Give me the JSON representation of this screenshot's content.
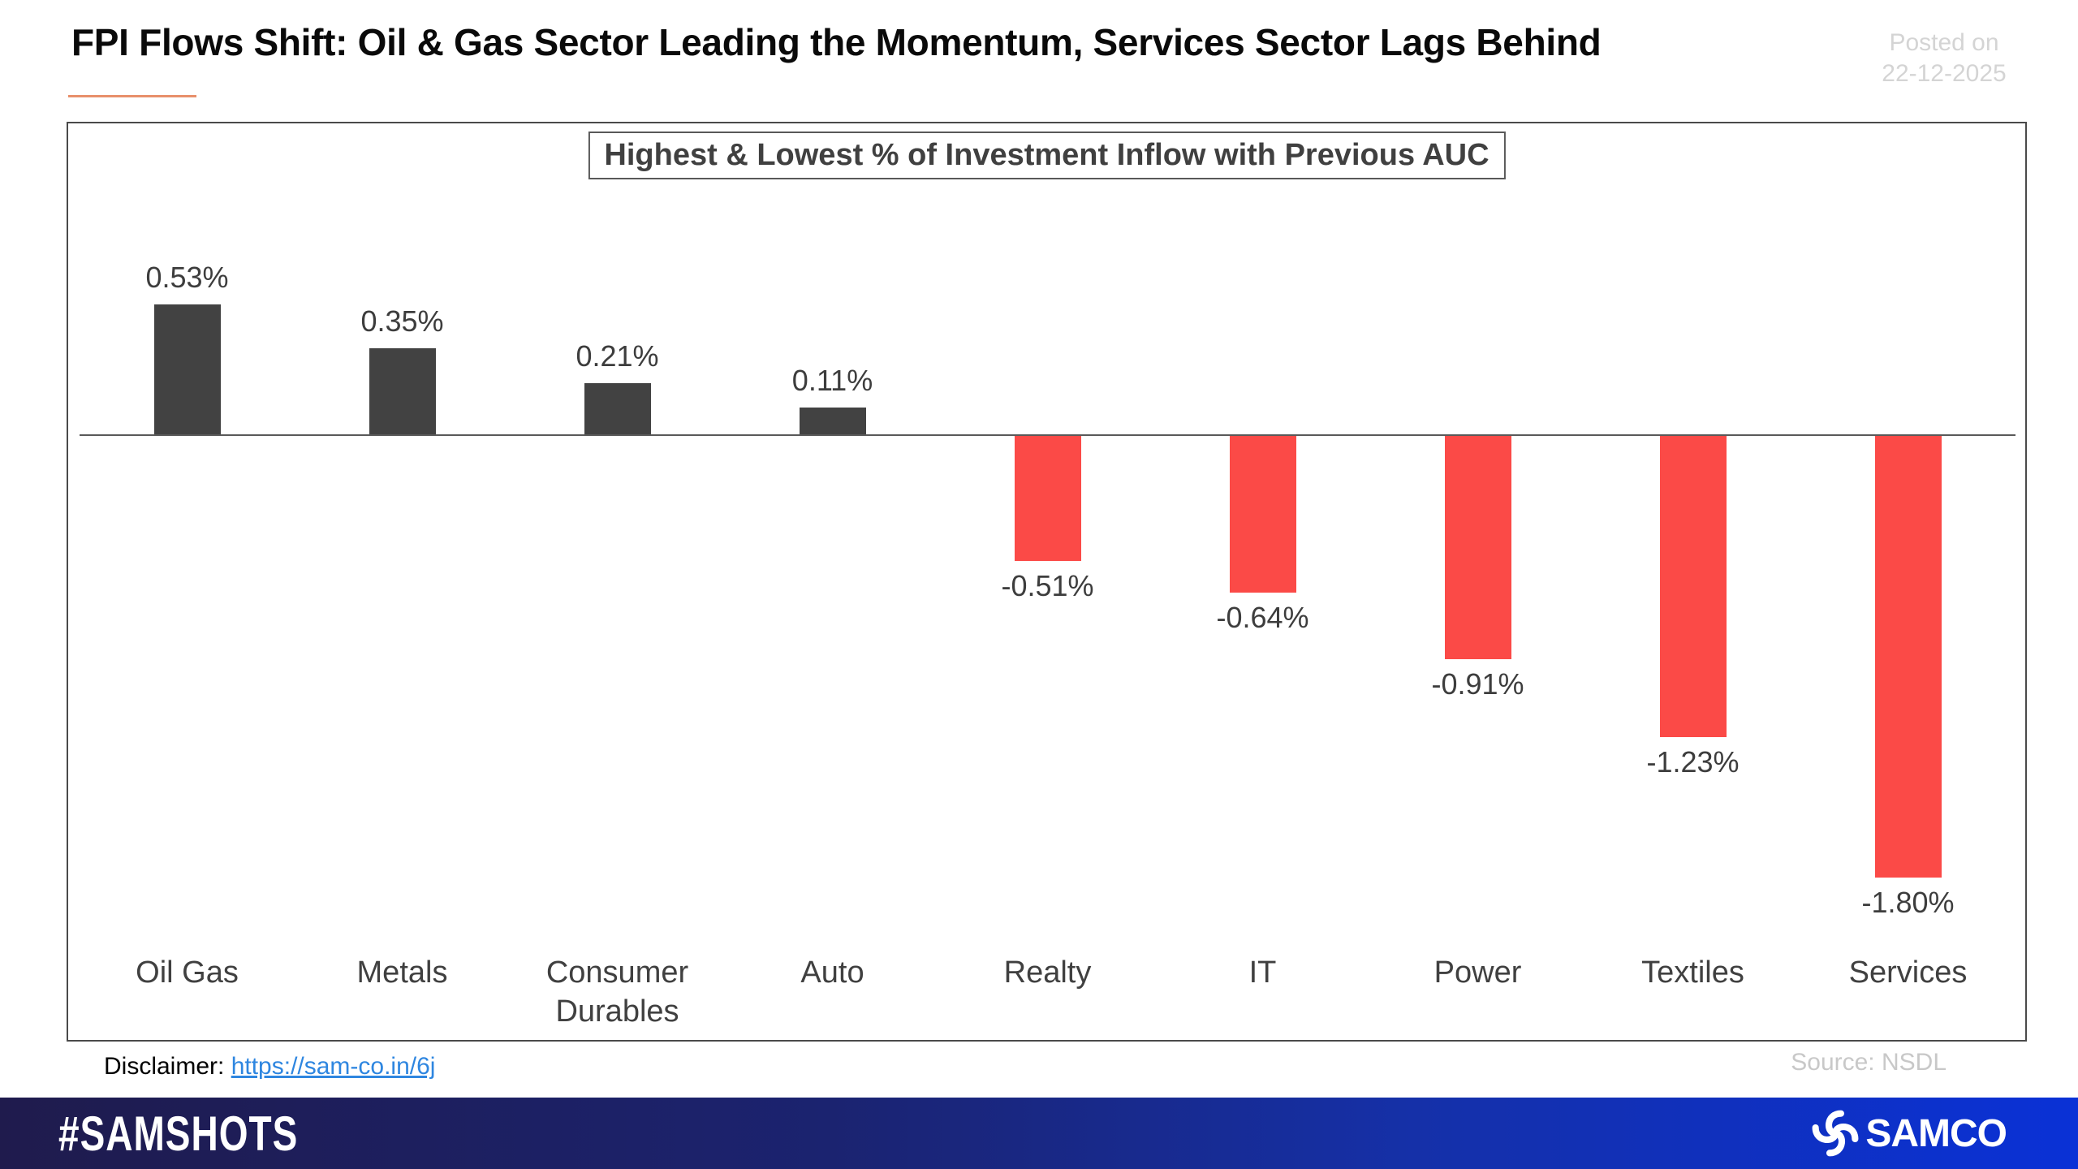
{
  "header": {
    "title": "FPI Flows Shift: Oil & Gas Sector Leading the Momentum, Services Sector Lags Behind",
    "posted_on": "Posted on",
    "posted_date": "22-12-2025"
  },
  "chart_data": {
    "type": "bar",
    "title": "Highest & Lowest % of Investment Inflow with Previous AUC",
    "categories": [
      "Oil Gas",
      "Metals",
      "Consumer Durables",
      "Auto",
      "Realty",
      "IT",
      "Power",
      "Textiles",
      "Services"
    ],
    "values": [
      0.53,
      0.35,
      0.21,
      0.11,
      -0.51,
      -0.64,
      -0.91,
      -1.23,
      -1.8
    ],
    "labels": [
      "0.53%",
      "0.35%",
      "0.21%",
      "0.11%",
      "-0.51%",
      "-0.64%",
      "-0.91%",
      "-1.23%",
      "-1.80%"
    ],
    "positive_color": "#424242",
    "negative_color": "#FB4A47",
    "xlabel": "",
    "ylabel": "",
    "ylim": [
      -2.0,
      0.8
    ],
    "grid": false,
    "legend_position": "none",
    "baseline": 0
  },
  "footer": {
    "disclaimer_label": "Disclaimer:",
    "disclaimer_link": "https://sam-co.in/6j",
    "source": "Source: NSDL",
    "hashtag": "#SAMSHOTS",
    "brand": "SAMCO"
  },
  "colors": {
    "title_underline": "#E8906B",
    "posted_text": "#D4D4D4",
    "source_text": "#C8C8C8",
    "link_blue": "#2E86E0",
    "footer_gradient_left": "#1F1B4D",
    "footer_gradient_right": "#0A31D6",
    "frame_border": "#4A4A4A"
  }
}
